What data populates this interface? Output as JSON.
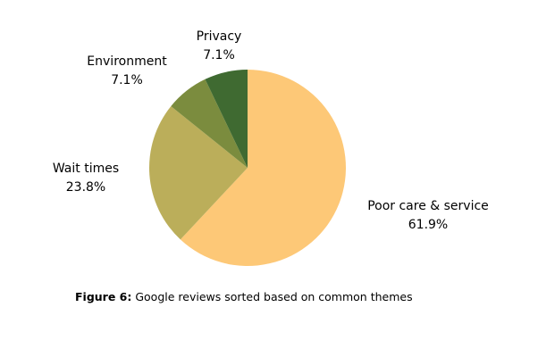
{
  "chart_data": {
    "type": "pie",
    "title": "",
    "slices": [
      {
        "label": "Poor care & service",
        "value": 61.9,
        "value_label": "61.9%",
        "color": "#FDC877"
      },
      {
        "label": "Wait times",
        "value": 23.8,
        "value_label": "23.8%",
        "color": "#BBAE5A"
      },
      {
        "label": "Environment",
        "value": 7.1,
        "value_label": "7.1%",
        "color": "#7B8C3E"
      },
      {
        "label": "Privacy",
        "value": 7.1,
        "value_label": "7.1%",
        "color": "#3F6A31"
      }
    ],
    "start": "12 o'clock",
    "direction": "clockwise",
    "legend": "none",
    "labels": "outside"
  },
  "caption": {
    "figure_label": "Figure  6:",
    "text": " Google reviews sorted based on common themes"
  }
}
